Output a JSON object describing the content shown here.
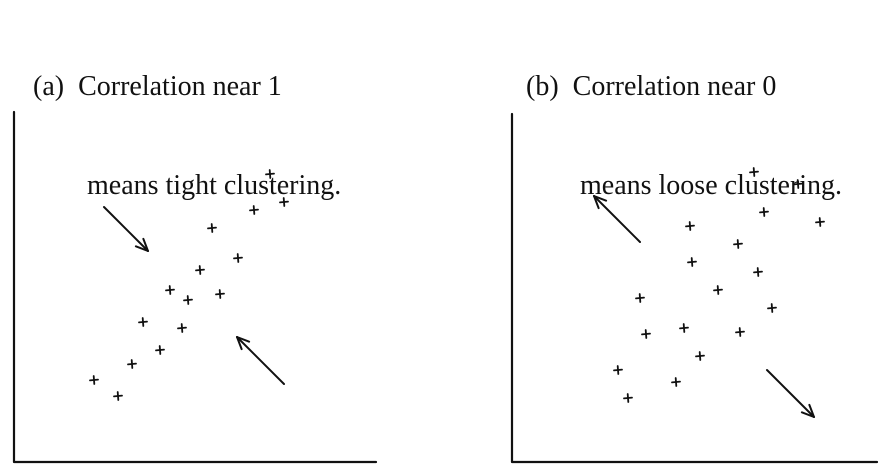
{
  "panels": [
    {
      "id": "a",
      "caption_label": "(a)",
      "caption_line1": "Correlation near 1",
      "caption_line2": "means tight clustering.",
      "points": [
        [
          94,
          380
        ],
        [
          118,
          396
        ],
        [
          132,
          364
        ],
        [
          160,
          350
        ],
        [
          143,
          322
        ],
        [
          182,
          328
        ],
        [
          170,
          290
        ],
        [
          188,
          300
        ],
        [
          220,
          294
        ],
        [
          200,
          270
        ],
        [
          238,
          258
        ],
        [
          212,
          228
        ],
        [
          254,
          210
        ],
        [
          270,
          174
        ],
        [
          284,
          202
        ]
      ],
      "arrows": [
        {
          "from": [
            104,
            207
          ],
          "to": [
            148,
            251
          ]
        },
        {
          "from": [
            284,
            384
          ],
          "to": [
            237,
            337
          ]
        }
      ]
    },
    {
      "id": "b",
      "caption_label": "(b)",
      "caption_line1": "Correlation near 0",
      "caption_line2": "means loose clustering.",
      "points": [
        [
          618,
          370
        ],
        [
          628,
          398
        ],
        [
          676,
          382
        ],
        [
          646,
          334
        ],
        [
          640,
          298
        ],
        [
          684,
          328
        ],
        [
          700,
          356
        ],
        [
          692,
          262
        ],
        [
          690,
          226
        ],
        [
          718,
          290
        ],
        [
          738,
          244
        ],
        [
          740,
          332
        ],
        [
          758,
          272
        ],
        [
          772,
          308
        ],
        [
          764,
          212
        ],
        [
          754,
          172
        ],
        [
          798,
          184
        ],
        [
          820,
          222
        ]
      ],
      "arrows": [
        {
          "from": [
            640,
            242
          ],
          "to": [
            594,
            196
          ]
        },
        {
          "from": [
            767,
            370
          ],
          "to": [
            814,
            417
          ]
        }
      ]
    }
  ],
  "style": {
    "ink": "#111111"
  }
}
